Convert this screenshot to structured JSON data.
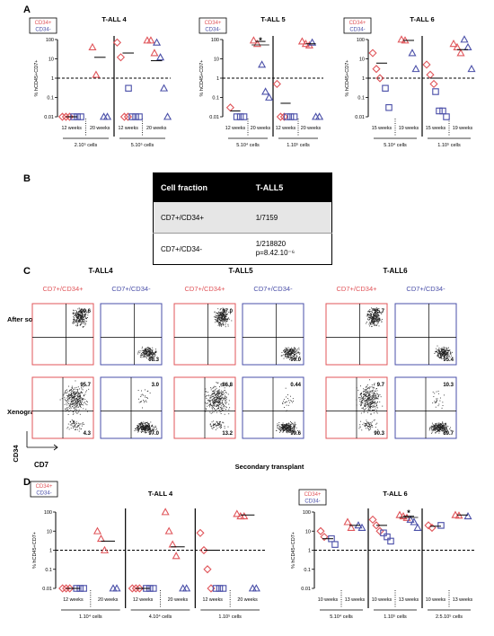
{
  "panel_labels": {
    "A": "A",
    "B": "B",
    "C": "C",
    "D": "D"
  },
  "colors": {
    "cd34pos": "#e0555a",
    "cd34neg": "#4a4fa8",
    "median": "#000000"
  },
  "legend": {
    "pos": "CD34+",
    "neg": "CD34-"
  },
  "y_tick_labels": [
    "100",
    "10",
    "1",
    "0.1",
    "0.01"
  ],
  "y_axis_label": "% hCD45+CD7+",
  "chart_data": [
    {
      "type": "scatter",
      "panel": "A",
      "title": "T-ALL 4",
      "ylabel": "% hCD45+CD7+",
      "yscale": "log",
      "ylim": [
        0.01,
        100
      ],
      "threshold": 1,
      "groups": [
        {
          "time": "12 weeks",
          "dose": "2.10⁵ cells",
          "pos": [
            0.01,
            0.01,
            0.01
          ],
          "neg": [
            0.01,
            0.01,
            0.01
          ]
        },
        {
          "time": "20 weeks",
          "dose": "2.10⁵ cells",
          "pos": [
            40,
            1.5
          ],
          "neg": [
            0.01,
            0.01
          ]
        },
        {
          "time": "12 weeks",
          "dose": "5.10⁵ cells",
          "pos": [
            70,
            12,
            0.01,
            0.01
          ],
          "neg": [
            0.3,
            0.01,
            0.01,
            0.01
          ]
        },
        {
          "time": "20 weeks",
          "dose": "5.10⁵ cells",
          "pos": [
            90,
            90,
            20
          ],
          "neg": [
            70,
            12,
            0.3,
            0.01
          ]
        }
      ],
      "medians": [
        0.01,
        12,
        20,
        8
      ],
      "dose_labels": [
        "2.10⁵ cells",
        "5.10⁵ cells"
      ]
    },
    {
      "type": "scatter",
      "panel": "A",
      "title": "T-ALL 5",
      "ylabel": "% hCD45+CD7+",
      "yscale": "log",
      "ylim": [
        0.01,
        100
      ],
      "threshold": 1,
      "significance": "*",
      "groups": [
        {
          "time": "12 weeks",
          "dose": "5.10⁴ cells",
          "pos": [
            0.03
          ],
          "neg": [
            0.01,
            0.01,
            0.01
          ]
        },
        {
          "time": "20 weeks",
          "dose": "5.10⁴ cells",
          "pos": [
            90,
            60
          ],
          "neg": [
            5,
            0.2,
            0.1
          ]
        },
        {
          "time": "12 weeks",
          "dose": "1.10⁵ cells",
          "pos": [
            0.5,
            0.01,
            0.01
          ],
          "neg": [
            0.01,
            0.01,
            0.01
          ]
        },
        {
          "time": "20 weeks",
          "dose": "1.10⁵ cells",
          "pos": [
            80,
            60,
            50
          ],
          "neg": [
            70,
            0.01,
            0.01
          ]
        }
      ],
      "medians": [
        0.02,
        80,
        0.05,
        60
      ],
      "dose_labels": [
        "5.10⁴ cells",
        "1.10⁵ cells"
      ]
    },
    {
      "type": "scatter",
      "panel": "A",
      "title": "T-ALL 6",
      "ylabel": "% hCD45+CD7+",
      "yscale": "log",
      "ylim": [
        0.01,
        100
      ],
      "threshold": 1,
      "groups": [
        {
          "time": "15 weeks",
          "dose": "5.10⁴ cells",
          "pos": [
            20,
            3,
            1
          ],
          "neg": [
            0.3,
            0.03
          ]
        },
        {
          "time": "19 weeks",
          "dose": "5.10⁴ cells",
          "pos": [
            100,
            90
          ],
          "neg": [
            20,
            3
          ]
        },
        {
          "time": "15 weeks",
          "dose": "1.10⁵ cells",
          "pos": [
            5,
            1.5,
            0.5
          ],
          "neg": [
            0.2,
            0.02,
            0.02,
            0.01
          ]
        },
        {
          "time": "19 weeks",
          "dose": "1.10⁵ cells",
          "pos": [
            60,
            40,
            20
          ],
          "neg": [
            100,
            40,
            3
          ]
        }
      ],
      "medians": [
        6,
        90,
        1,
        30
      ],
      "dose_labels": [
        "5.10⁴ cells",
        "1.10⁵ cells"
      ]
    },
    {
      "type": "table",
      "panel": "B",
      "columns": [
        "Cell fraction",
        "T-ALL5"
      ],
      "rows": [
        [
          "CD7+/CD34+",
          "1/7159"
        ],
        [
          "CD7+/CD34-",
          "1/218820",
          "p=8.42.10⁻⁶"
        ]
      ]
    },
    {
      "type": "scatter",
      "panel": "D",
      "title": "T-ALL 4",
      "ylabel": "% hCD45+CD7+",
      "yscale": "log",
      "ylim": [
        0.01,
        100
      ],
      "threshold": 1,
      "groups": [
        {
          "time": "12 weeks",
          "dose": "1.10⁴ cells",
          "pos": [
            0.01,
            0.01,
            0.01
          ],
          "neg": [
            0.01,
            0.01,
            0.01
          ]
        },
        {
          "time": "20 weeks",
          "dose": "1.10⁴ cells",
          "pos": [
            10,
            4,
            1
          ],
          "neg": [
            0.01,
            0.01
          ]
        },
        {
          "time": "12 weeks",
          "dose": "4.10⁴ cells",
          "pos": [
            0.01,
            0.01,
            0.01
          ],
          "neg": [
            0.01,
            0.01,
            0.01
          ]
        },
        {
          "time": "20 weeks",
          "dose": "4.10⁴ cells",
          "pos": [
            100,
            10,
            2,
            0.5
          ],
          "neg": [
            0.01,
            0.01
          ]
        },
        {
          "time": "12 weeks",
          "dose": "1.10⁵ cells",
          "pos": [
            8,
            1,
            0.1,
            0.01
          ],
          "neg": [
            0.01,
            0.01,
            0.01
          ]
        },
        {
          "time": "20 weeks",
          "dose": "1.10⁵ cells",
          "pos": [
            80,
            60,
            60
          ],
          "neg": [
            0.01,
            0.01
          ]
        }
      ],
      "medians": [
        0.01,
        3,
        0.01,
        1.5,
        1,
        70
      ],
      "dose_labels": [
        "1.10⁴ cells",
        "4.10⁴ cells",
        "1.10⁵ cells"
      ]
    },
    {
      "type": "scatter",
      "panel": "D",
      "title": "T-ALL 6",
      "ylabel": "% hCD45+CD7+",
      "yscale": "log",
      "ylim": [
        0.01,
        100
      ],
      "threshold": 1,
      "significance": "*",
      "groups": [
        {
          "time": "10 weeks",
          "dose": "5.10⁴ cells",
          "pos": [
            10,
            5
          ],
          "neg": [
            4,
            2
          ]
        },
        {
          "time": "13 weeks",
          "dose": "5.10⁴ cells",
          "pos": [
            30,
            15
          ],
          "neg": [
            20,
            15
          ]
        },
        {
          "time": "10 weeks",
          "dose": "1.10⁵ cells",
          "pos": [
            40,
            20,
            10
          ],
          "neg": [
            8,
            5,
            3
          ]
        },
        {
          "time": "13 weeks",
          "dose": "1.10⁵ cells",
          "pos": [
            70,
            60,
            50
          ],
          "neg": [
            40,
            30,
            15
          ]
        },
        {
          "time": "10 weeks",
          "dose": "2.5.10⁵ cells",
          "pos": [
            20,
            15
          ],
          "neg": [
            20
          ]
        },
        {
          "time": "13 weeks",
          "dose": "2.5.10⁵ cells",
          "pos": [
            70,
            65
          ],
          "neg": [
            60
          ]
        }
      ],
      "medians": [
        4,
        20,
        20,
        60,
        18,
        70
      ],
      "dose_labels": [
        "5.10⁴ cells",
        "1.10⁵ cells",
        "2.5.10⁵ cells"
      ]
    }
  ],
  "panel_c": {
    "titles": [
      "T-ALL4",
      "T-ALL5",
      "T-ALL6"
    ],
    "subtitles": [
      "CD7+/CD34+",
      "CD7+/CD34-"
    ],
    "row_labels": [
      "After sorting",
      "Xenograft"
    ],
    "y_label": "CD34",
    "x_label": "CD7",
    "plots": [
      {
        "row": 0,
        "col": 0,
        "pct": [
          "99.6"
        ]
      },
      {
        "row": 0,
        "col": 1,
        "pct": [
          "98.3"
        ]
      },
      {
        "row": 0,
        "col": 2,
        "pct": [
          "97.0"
        ]
      },
      {
        "row": 0,
        "col": 3,
        "pct": [
          "99.0"
        ]
      },
      {
        "row": 0,
        "col": 4,
        "pct": [
          "95.7"
        ]
      },
      {
        "row": 0,
        "col": 5,
        "pct": [
          "95.4"
        ]
      },
      {
        "row": 1,
        "col": 0,
        "pct": [
          "95.7",
          "4.3"
        ]
      },
      {
        "row": 1,
        "col": 1,
        "pct": [
          "3.0",
          "97.0"
        ]
      },
      {
        "row": 1,
        "col": 2,
        "pct": [
          "86.8",
          "13.2"
        ]
      },
      {
        "row": 1,
        "col": 3,
        "pct": [
          "0.44",
          "99.6"
        ]
      },
      {
        "row": 1,
        "col": 4,
        "pct": [
          "9.7",
          "90.3"
        ]
      },
      {
        "row": 1,
        "col": 5,
        "pct": [
          "10.3",
          "89.7"
        ]
      }
    ]
  },
  "secondary_label": "Secondary transplant"
}
